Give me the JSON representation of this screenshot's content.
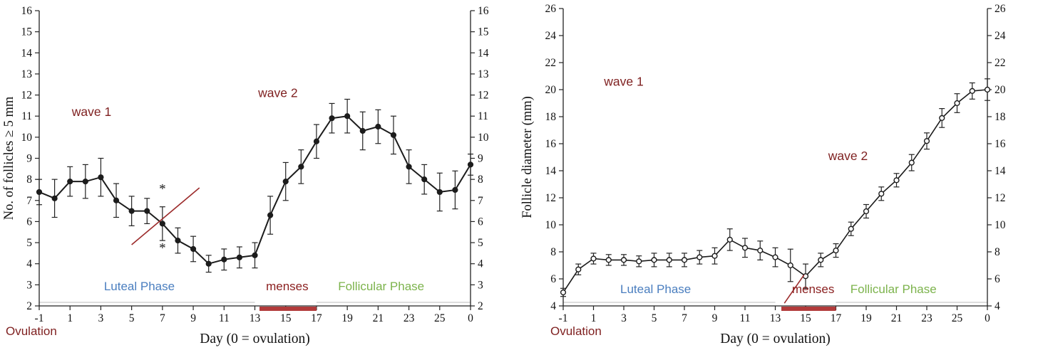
{
  "page": {
    "background": "#ffffff"
  },
  "chart_data": [
    {
      "name": "follicle-count",
      "type": "line",
      "title": "",
      "ylabel": "No. of follicles ≥ 5 mm",
      "xlabel": "Day (0 = ovulation)",
      "ylim": [
        2,
        16
      ],
      "ytick_step": 1,
      "xlim": [
        -1,
        27
      ],
      "xtick_values": [
        -1,
        1,
        3,
        5,
        7,
        9,
        11,
        13,
        15,
        17,
        19,
        21,
        23,
        25,
        27
      ],
      "xtick_labels": [
        "-1",
        "1",
        "3",
        "5",
        "7",
        "9",
        "11",
        "13",
        "15",
        "17",
        "19",
        "21",
        "23",
        "25",
        "0"
      ],
      "grid": false,
      "legend": null,
      "marker": "filled-circle",
      "line_color": "#1c1c1c",
      "line_width": 2,
      "x": [
        -1,
        0,
        1,
        2,
        3,
        4,
        5,
        6,
        7,
        8,
        9,
        10,
        11,
        12,
        13,
        14,
        15,
        16,
        17,
        18,
        19,
        20,
        21,
        22,
        23,
        24,
        25,
        26,
        27
      ],
      "values": [
        7.4,
        7.1,
        7.9,
        7.9,
        8.1,
        7.0,
        6.5,
        6.5,
        5.9,
        5.1,
        4.7,
        4.0,
        4.2,
        4.3,
        4.4,
        6.3,
        7.9,
        8.6,
        9.8,
        10.9,
        11.0,
        10.3,
        10.5,
        10.1,
        8.6,
        8.0,
        7.4,
        7.5,
        8.7
      ],
      "errors": [
        0.6,
        0.9,
        0.7,
        0.8,
        0.9,
        0.8,
        0.7,
        0.6,
        0.8,
        0.6,
        0.6,
        0.4,
        0.5,
        0.5,
        0.6,
        0.9,
        0.9,
        0.8,
        0.8,
        0.7,
        0.8,
        0.9,
        0.8,
        0.9,
        0.8,
        0.7,
        0.9,
        0.9,
        0.5
      ],
      "annotations": [
        {
          "name": "wave-1",
          "text": "wave 1",
          "x": 2.4,
          "y": 11.0,
          "color": "#7e1f1f",
          "family": "sans",
          "size": 17.5
        },
        {
          "name": "wave-2",
          "text": "wave 2",
          "x": 14.5,
          "y": 11.9,
          "color": "#7e1f1f",
          "family": "sans",
          "size": 17.5
        },
        {
          "name": "luteal-phase",
          "text": "Luteal Phase",
          "x": 5.5,
          "y": 2.75,
          "color": "#4a7ebf",
          "family": "sans",
          "size": 17
        },
        {
          "name": "menses",
          "text": "menses",
          "x": 15.1,
          "y": 2.75,
          "color": "#8b2020",
          "family": "sans",
          "size": 17
        },
        {
          "name": "follicular-phase",
          "text": "Follicular Phase",
          "x": 21.2,
          "y": 2.75,
          "color": "#7cb34c",
          "family": "sans",
          "size": 17
        },
        {
          "name": "asterisk-upper",
          "text": "*",
          "x": 7,
          "y": 7.35,
          "color": "#1c1c1c",
          "family": "serif",
          "size": 19
        },
        {
          "name": "asterisk-lower",
          "text": "*",
          "x": 7,
          "y": 4.55,
          "color": "#1c1c1c",
          "family": "serif",
          "size": 19
        }
      ],
      "extra_lines": [
        {
          "x1": 5.0,
          "y1": 4.9,
          "x2": 9.4,
          "y2": 7.6,
          "color": "#9c2b2b"
        }
      ],
      "menses_bar": {
        "x1": 13.3,
        "x2": 17.0,
        "color": "#b23b3b"
      },
      "phase_bars": [
        {
          "x1": -1,
          "x2": 13,
          "color": "#d2d2d2"
        },
        {
          "x1": 17,
          "x2": 27,
          "color": "#d2d2d2"
        }
      ],
      "ovulation_label": "Ovulation",
      "ovulation_color": "#7e1f1f"
    },
    {
      "name": "follicle-diameter",
      "type": "line",
      "title": "",
      "ylabel": "Follicle diameter (mm)",
      "xlabel": "Day (0 = ovulation)",
      "ylim": [
        4,
        26
      ],
      "ytick_step": 2,
      "xlim": [
        -1,
        27
      ],
      "xtick_values": [
        -1,
        1,
        3,
        5,
        7,
        9,
        11,
        13,
        15,
        17,
        19,
        21,
        23,
        25,
        27
      ],
      "xtick_labels": [
        "-1",
        "1",
        "3",
        "5",
        "7",
        "9",
        "11",
        "13",
        "15",
        "17",
        "19",
        "21",
        "23",
        "25",
        "0"
      ],
      "grid": false,
      "legend": null,
      "marker": "open-circle",
      "line_color": "#1c1c1c",
      "line_width": 1.6,
      "x": [
        -1,
        0,
        1,
        2,
        3,
        4,
        5,
        6,
        7,
        8,
        9,
        10,
        11,
        12,
        13,
        14,
        15,
        16,
        17,
        18,
        19,
        20,
        21,
        22,
        23,
        24,
        25,
        26,
        27
      ],
      "values": [
        5.0,
        6.7,
        7.5,
        7.4,
        7.4,
        7.3,
        7.4,
        7.4,
        7.4,
        7.6,
        7.7,
        8.9,
        8.3,
        8.1,
        7.6,
        7.0,
        6.2,
        7.4,
        8.1,
        9.7,
        11.0,
        12.3,
        13.3,
        14.6,
        16.2,
        17.9,
        19.0,
        19.9,
        20.0
      ],
      "errors": [
        0.3,
        0.4,
        0.4,
        0.4,
        0.4,
        0.4,
        0.5,
        0.5,
        0.5,
        0.5,
        0.6,
        0.8,
        0.7,
        0.7,
        0.7,
        1.2,
        0.9,
        0.5,
        0.5,
        0.5,
        0.5,
        0.5,
        0.5,
        0.6,
        0.6,
        0.7,
        0.7,
        0.6,
        0.8
      ],
      "annotations": [
        {
          "name": "wave-1",
          "text": "wave 1",
          "x": 3.0,
          "y": 20.3,
          "color": "#7e1f1f",
          "family": "sans",
          "size": 17.5
        },
        {
          "name": "wave-2",
          "text": "wave 2",
          "x": 17.8,
          "y": 14.8,
          "color": "#7e1f1f",
          "family": "sans",
          "size": 17.5
        },
        {
          "name": "luteal-phase",
          "text": "Luteal Phase",
          "x": 5.1,
          "y": 4.95,
          "color": "#4a7ebf",
          "family": "sans",
          "size": 17
        },
        {
          "name": "menses",
          "text": "menses",
          "x": 15.5,
          "y": 4.95,
          "color": "#8b2020",
          "family": "sans",
          "size": 17
        },
        {
          "name": "follicular-phase",
          "text": "Follicular Phase",
          "x": 20.8,
          "y": 4.95,
          "color": "#7cb34c",
          "family": "sans",
          "size": 17
        }
      ],
      "extra_lines": [
        {
          "x1": 13.6,
          "y1": 4.2,
          "x2": 14.9,
          "y2": 6.3,
          "color": "#9c2b2b"
        }
      ],
      "menses_bar": {
        "x1": 13.4,
        "x2": 17.0,
        "color": "#b23b3b"
      },
      "phase_bars": [
        {
          "x1": -1,
          "x2": 13,
          "color": "#d2d2d2"
        },
        {
          "x1": 17,
          "x2": 27,
          "color": "#d2d2d2"
        }
      ],
      "ovulation_label": "Ovulation",
      "ovulation_color": "#7e1f1f"
    }
  ]
}
